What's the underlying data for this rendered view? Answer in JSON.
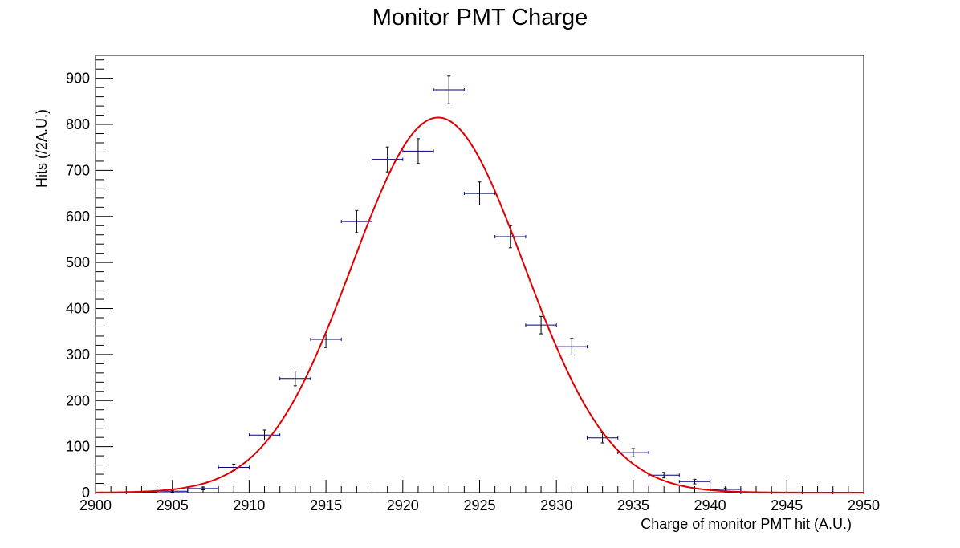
{
  "chart_data": {
    "type": "scatter",
    "title": "Monitor PMT Charge",
    "xlabel": "Charge of monitor PMT hit (A.U.)",
    "ylabel": "Hits (/2A.U.)",
    "xlim": [
      2900,
      2950
    ],
    "ylim": [
      0,
      950
    ],
    "x_ticks": [
      2900,
      2905,
      2910,
      2915,
      2920,
      2925,
      2930,
      2935,
      2940,
      2945,
      2950
    ],
    "y_ticks": [
      0,
      100,
      200,
      300,
      400,
      500,
      600,
      700,
      800,
      900
    ],
    "grid": false,
    "legend": "none",
    "bin_width": 2,
    "histogram": {
      "name": "data",
      "color": "#000080",
      "x": [
        2901,
        2903,
        2905,
        2907,
        2909,
        2911,
        2913,
        2915,
        2917,
        2919,
        2921,
        2923,
        2925,
        2927,
        2929,
        2931,
        2933,
        2935,
        2937,
        2939,
        2941,
        2943,
        2945,
        2947,
        2949
      ],
      "y": [
        0,
        1,
        3,
        9,
        55,
        125,
        248,
        333,
        589,
        724,
        742,
        875,
        650,
        556,
        364,
        317,
        119,
        87,
        38,
        24,
        7,
        0,
        0,
        0,
        0
      ],
      "yerr": [
        0,
        1,
        2,
        3,
        7,
        11,
        16,
        18,
        24,
        27,
        27,
        30,
        25,
        24,
        19,
        18,
        11,
        9,
        6,
        5,
        3,
        0,
        0,
        0,
        0
      ]
    },
    "fit": {
      "name": "gaussian fit",
      "color": "#e00000",
      "function": "gaus",
      "amplitude": 815,
      "mean": 2922.3,
      "sigma": 5.6
    }
  }
}
